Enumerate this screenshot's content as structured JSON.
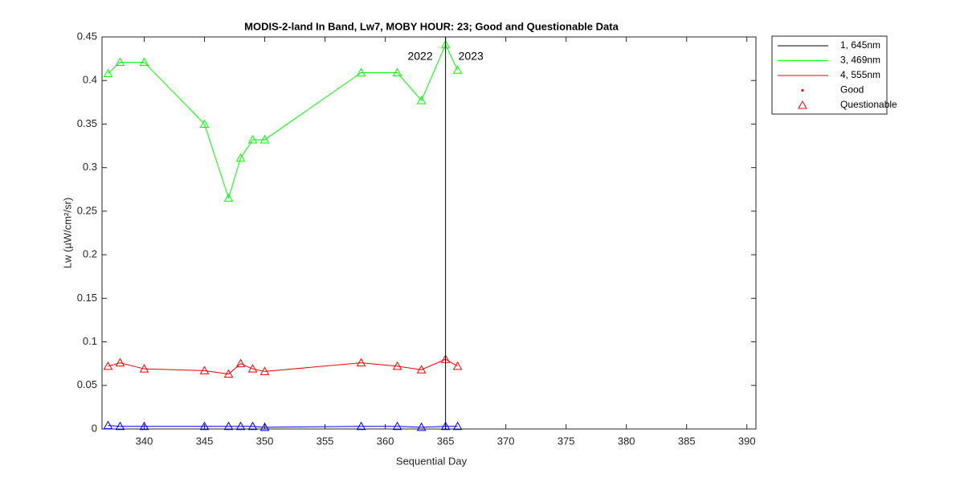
{
  "chart_data": {
    "type": "line",
    "title": "MODIS-2-land In Band,  Lw7, MOBY HOUR: 23;  Good and Questionable Data",
    "x_label": "Sequential Day",
    "y_label": "Lw (µW/cm²/sr)",
    "x": [
      337,
      338,
      340,
      345,
      347,
      348,
      349,
      350,
      358,
      361,
      363,
      365,
      366
    ],
    "series": [
      {
        "color": "#00ff00",
        "values": [
          0.408,
          0.421,
          0.421,
          0.35,
          0.265,
          0.311,
          0.332,
          0.332,
          0.409,
          0.409,
          0.377,
          0.441,
          0.412
        ]
      },
      {
        "color": "#ff0000",
        "values": [
          0.072,
          0.076,
          0.069,
          0.067,
          0.063,
          0.075,
          0.069,
          0.066,
          0.076,
          0.072,
          0.068,
          0.08,
          0.072
        ]
      },
      {
        "color": "#0000ff",
        "values": [
          0.004,
          0.003,
          0.003,
          0.003,
          0.003,
          0.003,
          0.003,
          0.002,
          0.003,
          0.003,
          0.002,
          0.003,
          0.003
        ]
      }
    ],
    "marker": "triangle",
    "xlim": [
      336.5,
      390.75
    ],
    "ylim": [
      0,
      0.45
    ],
    "xticks": [
      340,
      345,
      350,
      355,
      360,
      365,
      370,
      375,
      380,
      385,
      390
    ],
    "yticks": [
      0,
      0.05,
      0.1,
      0.15,
      0.2,
      0.25,
      0.3,
      0.35,
      0.4,
      0.45
    ],
    "vline": {
      "x": 365,
      "color": "#000000",
      "labels": [
        "2022",
        "2023"
      ]
    },
    "legend": {
      "location": "outside right",
      "entries": [
        {
          "label": "1, 645nm",
          "color": "#000000",
          "marker": "line"
        },
        {
          "label": "3, 469nm",
          "color": "#00ff00",
          "marker": "line"
        },
        {
          "label": "4, 555nm",
          "color": "#ff0000",
          "marker": "line"
        },
        {
          "label": "Good",
          "color": "#ff0000",
          "marker": "dot"
        },
        {
          "label": "Questionable",
          "color": "#ff0000",
          "marker": "triangle"
        }
      ]
    }
  }
}
